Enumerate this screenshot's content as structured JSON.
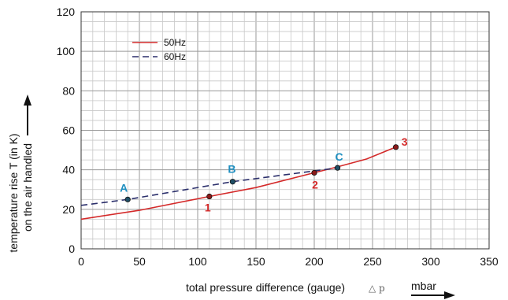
{
  "chart_data": {
    "type": "line",
    "xlabel": "total pressure difference (gauge)",
    "xlabel_symbol": "△ p",
    "xunit": "mbar",
    "ylabel_line1": "temperature rise T (in K)",
    "ylabel_line2": "on the air handled",
    "xlim": [
      0,
      350
    ],
    "ylim": [
      0,
      120
    ],
    "x_ticks": [
      0,
      50,
      100,
      150,
      200,
      250,
      300,
      350
    ],
    "y_ticks": [
      0,
      20,
      40,
      60,
      80,
      100,
      120
    ],
    "grid": true,
    "legend_position": "top-left",
    "series": [
      {
        "name": "50Hz",
        "style": "solid",
        "color": "#d42a2a",
        "x": [
          0,
          50,
          110,
          150,
          200,
          220,
          245,
          270
        ],
        "y": [
          15,
          19.5,
          26.5,
          31,
          38.5,
          41.5,
          45.5,
          51.5
        ]
      },
      {
        "name": "60Hz",
        "style": "dashed",
        "color": "#2b2f6b",
        "x": [
          0,
          40,
          130,
          220
        ],
        "y": [
          22,
          25,
          34,
          41
        ]
      }
    ],
    "points": [
      {
        "label": "A",
        "x": 40,
        "y": 25,
        "color": "#1f8fc0",
        "fill": "#1f4f66"
      },
      {
        "label": "B",
        "x": 130,
        "y": 34,
        "color": "#1f8fc0",
        "fill": "#1f4f66"
      },
      {
        "label": "C",
        "x": 220,
        "y": 41,
        "color": "#1f8fc0",
        "fill": "#1f4f66"
      },
      {
        "label": "1",
        "x": 110,
        "y": 26.5,
        "color": "#d42a2a",
        "fill": "#8b1a1a"
      },
      {
        "label": "2",
        "x": 200,
        "y": 38.5,
        "color": "#d42a2a",
        "fill": "#8b1a1a"
      },
      {
        "label": "3",
        "x": 270,
        "y": 51.5,
        "color": "#d42a2a",
        "fill": "#8b1a1a"
      }
    ]
  }
}
